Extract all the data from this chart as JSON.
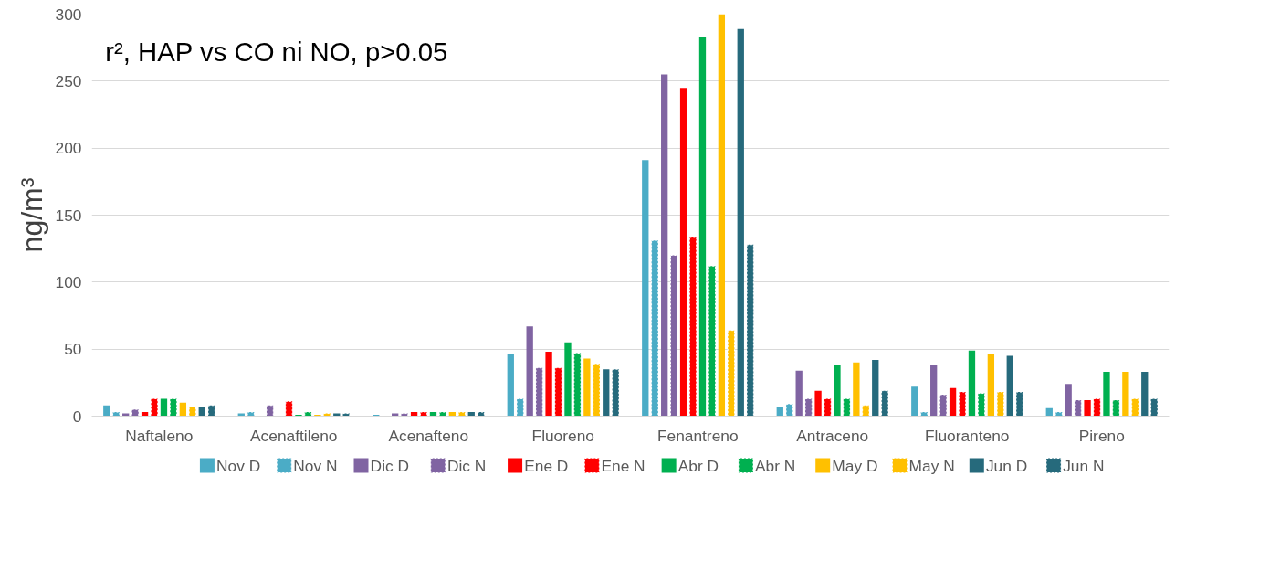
{
  "chart_data": {
    "type": "bar",
    "ylabel": "ng/m³",
    "annotations": [
      "r², HAP vs CO ni NO, p>0.05"
    ],
    "categories": [
      "Naftaleno",
      "Acenaftileno",
      "Acenafteno",
      "Fluoreno",
      "Fenantreno",
      "Antraceno",
      "Fluoranteno",
      "Pireno"
    ],
    "ylim": [
      0,
      300
    ],
    "yticks": [
      0,
      50,
      100,
      150,
      200,
      250,
      300
    ],
    "grid": "y",
    "legend": "bottom",
    "series": [
      {
        "name": "Nov D",
        "color": "#4bacc6",
        "values": [
          8,
          2,
          1,
          46,
          191,
          7,
          22,
          6
        ]
      },
      {
        "name": "Nov N",
        "color": "#4bacc6",
        "line_style": "dashed",
        "values": [
          3,
          3,
          0,
          13,
          131,
          9,
          3,
          3
        ]
      },
      {
        "name": "Dic D",
        "color": "#8064a2",
        "values": [
          2,
          0,
          2,
          67,
          255,
          34,
          38,
          24
        ]
      },
      {
        "name": "Dic N",
        "color": "#8064a2",
        "line_style": "dashed",
        "values": [
          5,
          8,
          2,
          36,
          120,
          13,
          16,
          12
        ]
      },
      {
        "name": "Ene D",
        "color": "#ff0000",
        "values": [
          3,
          0,
          3,
          48,
          245,
          19,
          21,
          12
        ]
      },
      {
        "name": "Ene N",
        "color": "#ff0000",
        "line_style": "dashed",
        "values": [
          13,
          11,
          3,
          36,
          134,
          13,
          18,
          13
        ]
      },
      {
        "name": "Abr D",
        "color": "#00b050",
        "values": [
          13,
          1,
          3,
          55,
          283,
          38,
          49,
          33
        ]
      },
      {
        "name": "Abr N",
        "color": "#00b050",
        "line_style": "dashed",
        "values": [
          13,
          3,
          3,
          47,
          112,
          13,
          17,
          12
        ]
      },
      {
        "name": "May D",
        "color": "#ffc000",
        "values": [
          10,
          1,
          3,
          43,
          300,
          40,
          46,
          33
        ]
      },
      {
        "name": "May N",
        "color": "#ffc000",
        "line_style": "dashed",
        "values": [
          7,
          2,
          3,
          39,
          64,
          8,
          18,
          13
        ]
      },
      {
        "name": "Jun D",
        "color": "#266a7c",
        "values": [
          7,
          2,
          3,
          35,
          289,
          42,
          45,
          33
        ]
      },
      {
        "name": "Jun N",
        "color": "#266a7c",
        "line_style": "dashed",
        "values": [
          8,
          2,
          3,
          35,
          128,
          19,
          18,
          13
        ]
      }
    ]
  }
}
